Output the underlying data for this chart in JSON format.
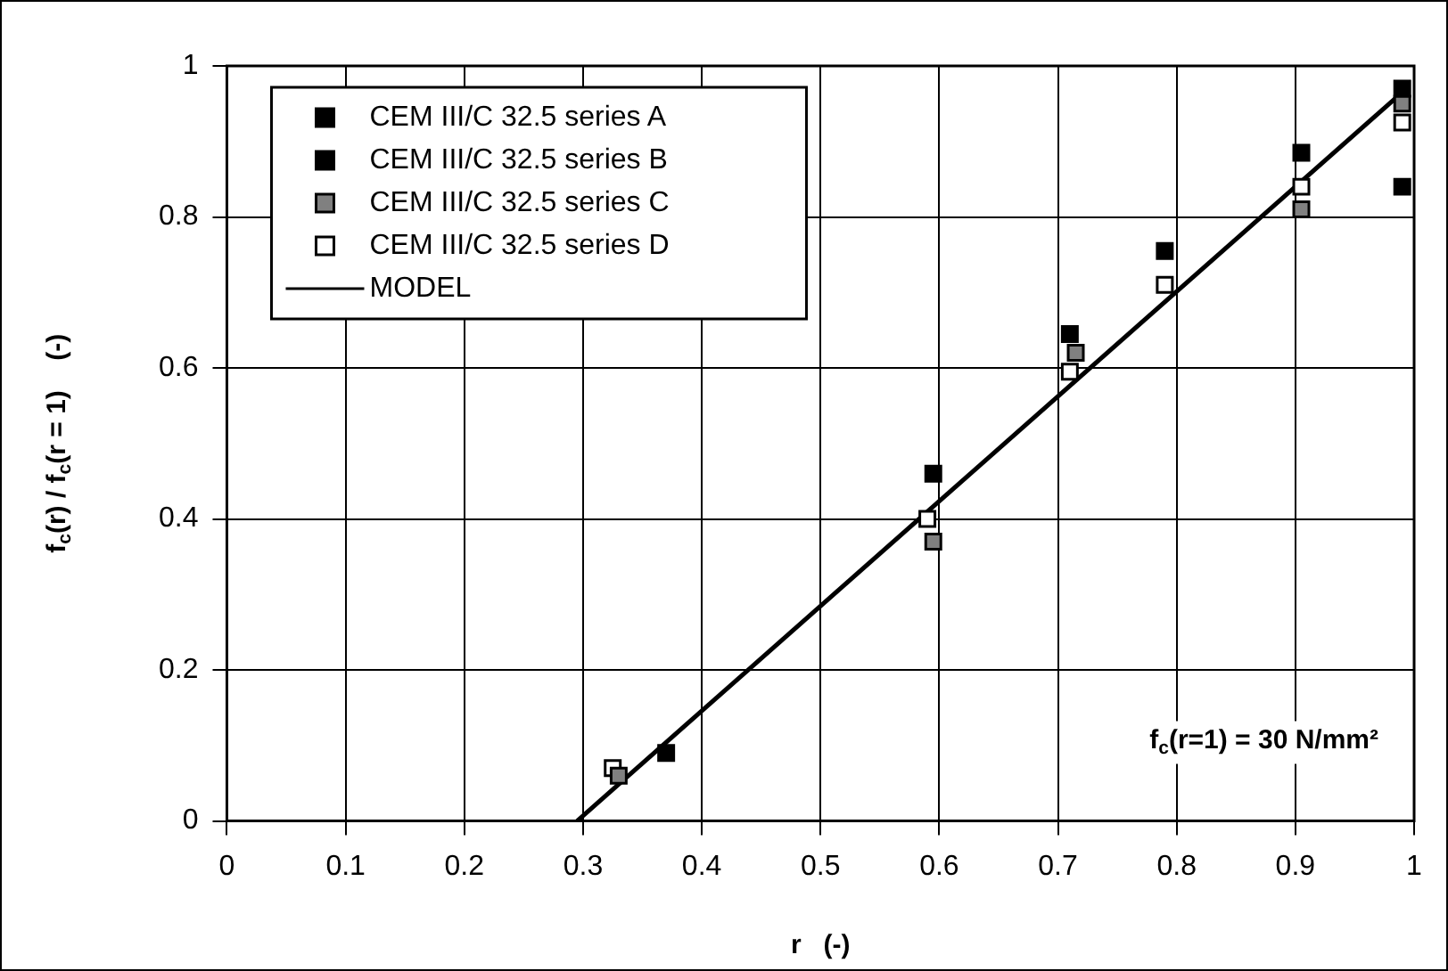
{
  "chart_data": {
    "type": "scatter",
    "xlabel": "r   (-)",
    "ylabel": "f$_{c}$(r) / f$_{c}$(r = 1)    (-)",
    "xlim": [
      0,
      1
    ],
    "xticks": [
      0,
      0.1,
      0.2,
      0.3,
      0.4,
      0.5,
      0.6,
      0.7,
      0.8,
      0.9,
      1
    ],
    "ylim": [
      0,
      1
    ],
    "yticks": [
      0,
      0.2,
      0.4,
      0.6,
      0.8,
      1
    ],
    "grid": true,
    "legend": "top left",
    "marker": "square",
    "annotations": [
      "f$_{c}$(r=1) = 30 N/mm²"
    ],
    "series": [
      {
        "name": "CEM III/C 32.5 series A",
        "color": "#000000",
        "x": [
          0.37,
          0.595,
          0.79,
          0.99
        ],
        "values": [
          0.09,
          0.46,
          0.755,
          0.97
        ]
      },
      {
        "name": "CEM III/C 32.5 series B",
        "color": "#000000",
        "x": [
          0.71,
          0.905,
          0.99
        ],
        "values": [
          0.645,
          0.885,
          0.84
        ]
      },
      {
        "name": "CEM III/C 32.5 series C",
        "color": "#808080",
        "x": [
          0.33,
          0.595,
          0.715,
          0.905,
          0.99
        ],
        "values": [
          0.06,
          0.37,
          0.62,
          0.81,
          0.95
        ]
      },
      {
        "name": "CEM III/C 32.5 series D",
        "color": "#ffffff",
        "x": [
          0.325,
          0.59,
          0.71,
          0.79,
          0.905,
          0.99
        ],
        "values": [
          0.07,
          0.4,
          0.595,
          0.71,
          0.84,
          0.925
        ]
      },
      {
        "name": "MODEL",
        "type": "line",
        "color": "#000000",
        "marker": "none",
        "x": [
          0.295,
          0.99
        ],
        "values": [
          0,
          0.965
        ]
      }
    ]
  }
}
